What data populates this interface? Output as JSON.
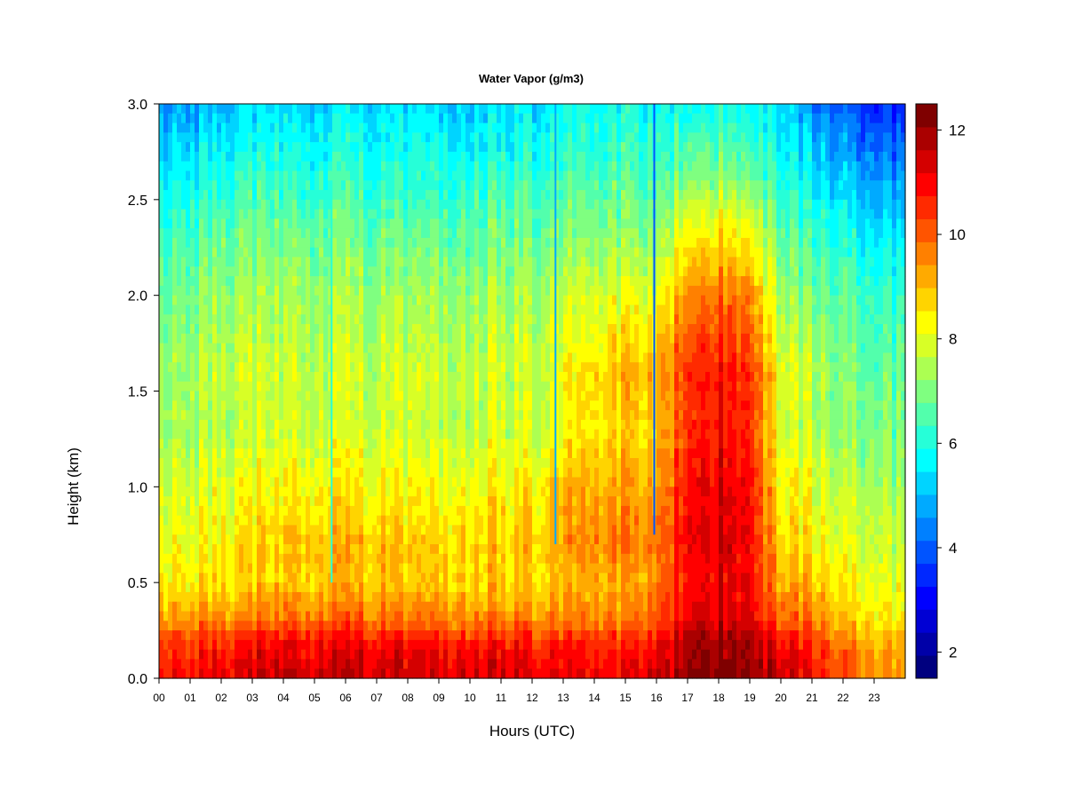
{
  "chart_data": {
    "type": "heatmap",
    "title": "Water Vapor (g/m3)",
    "xlabel": "Hours (UTC)",
    "ylabel": "Height (km)",
    "xlim": [
      0,
      24
    ],
    "ylim": [
      0.0,
      3.0
    ],
    "x_ticks": [
      "00",
      "01",
      "02",
      "03",
      "04",
      "05",
      "06",
      "07",
      "08",
      "09",
      "10",
      "11",
      "12",
      "13",
      "14",
      "15",
      "16",
      "17",
      "18",
      "19",
      "20",
      "21",
      "22",
      "23"
    ],
    "y_ticks": [
      "0.0",
      "0.5",
      "1.0",
      "1.5",
      "2.0",
      "2.5",
      "3.0"
    ],
    "colorbar": {
      "range": [
        1.5,
        12.5
      ],
      "tick_labels": [
        "2",
        "4",
        "6",
        "8",
        "10",
        "12"
      ],
      "colors": [
        "#00007f",
        "#0000a8",
        "#0000d4",
        "#0000ff",
        "#0028ff",
        "#0054ff",
        "#0080ff",
        "#00aaff",
        "#00d4ff",
        "#00ffff",
        "#26ffd8",
        "#52ffac",
        "#7fff80",
        "#acff52",
        "#d8ff26",
        "#ffff00",
        "#ffd400",
        "#ffaa00",
        "#ff8000",
        "#ff5400",
        "#ff2a00",
        "#ff0000",
        "#d40000",
        "#aa0000",
        "#7f0000"
      ]
    },
    "x": [
      0,
      2,
      4,
      6,
      8,
      10,
      12,
      13,
      14,
      15,
      16,
      17,
      18,
      19,
      20,
      21,
      22,
      23,
      24
    ],
    "heights": [
      0.0,
      0.1,
      0.2,
      0.3,
      0.5,
      0.7,
      1.0,
      1.3,
      1.6,
      2.0,
      2.3,
      2.6,
      2.9,
      3.0
    ],
    "profiles": [
      [
        10.8,
        10.6,
        10.2,
        9.5,
        8.4,
        8.2,
        7.8,
        7.3,
        7.2,
        6.8,
        6.3,
        5.6,
        4.9,
        4.7
      ],
      [
        11.2,
        11.0,
        10.5,
        9.6,
        8.6,
        8.4,
        8.0,
        7.6,
        7.7,
        7.3,
        6.8,
        6.1,
        5.3,
        5.0
      ],
      [
        11.5,
        11.3,
        10.9,
        9.9,
        8.9,
        8.9,
        8.3,
        7.8,
        7.7,
        7.4,
        6.9,
        6.3,
        5.6,
        5.3
      ],
      [
        11.5,
        11.3,
        10.9,
        9.9,
        9.0,
        9.0,
        8.4,
        7.8,
        7.7,
        7.3,
        6.8,
        6.2,
        5.6,
        5.3
      ],
      [
        11.4,
        11.3,
        10.8,
        9.8,
        8.9,
        8.9,
        8.3,
        7.8,
        7.8,
        7.4,
        6.8,
        6.2,
        5.6,
        5.3
      ],
      [
        11.4,
        11.2,
        10.7,
        9.7,
        8.8,
        8.8,
        8.3,
        7.7,
        7.7,
        7.3,
        6.8,
        6.2,
        5.5,
        5.2
      ],
      [
        11.2,
        11.0,
        10.6,
        9.6,
        8.8,
        8.9,
        8.5,
        7.8,
        7.8,
        7.4,
        6.9,
        6.3,
        5.7,
        5.5
      ],
      [
        11.1,
        10.9,
        10.5,
        9.6,
        8.9,
        9.2,
        8.9,
        8.1,
        8.2,
        7.6,
        7.0,
        6.4,
        5.8,
        5.7
      ],
      [
        11.0,
        10.8,
        10.4,
        9.6,
        9.0,
        9.5,
        9.1,
        8.5,
        8.6,
        7.8,
        7.1,
        6.5,
        5.9,
        5.8
      ],
      [
        11.0,
        10.8,
        10.4,
        9.6,
        9.1,
        9.7,
        9.2,
        8.7,
        9.1,
        8.0,
        7.2,
        6.6,
        6.0,
        5.9
      ],
      [
        11.4,
        11.2,
        10.8,
        10.0,
        9.5,
        9.6,
        9.2,
        8.7,
        9.0,
        7.9,
        7.1,
        6.4,
        5.8,
        5.7
      ],
      [
        12.2,
        12.0,
        11.8,
        11.2,
        11.0,
        11.2,
        11.0,
        10.6,
        10.6,
        9.6,
        8.4,
        7.2,
        6.2,
        6.0
      ],
      [
        12.4,
        12.2,
        12.0,
        11.5,
        11.2,
        11.4,
        11.3,
        10.9,
        10.8,
        9.9,
        8.6,
        7.3,
        6.2,
        6.0
      ],
      [
        12.3,
        12.1,
        11.9,
        11.4,
        11.1,
        11.2,
        11.1,
        10.7,
        10.7,
        9.7,
        8.5,
        7.1,
        6.1,
        5.9
      ],
      [
        11.4,
        11.2,
        10.7,
        9.9,
        9.1,
        8.6,
        8.2,
        7.8,
        7.9,
        7.2,
        6.6,
        6.0,
        5.4,
        5.2
      ],
      [
        11.0,
        10.8,
        10.4,
        9.8,
        9.0,
        8.5,
        8.1,
        7.6,
        7.6,
        7.0,
        6.4,
        5.6,
        4.8,
        4.4
      ],
      [
        10.2,
        10.0,
        9.6,
        9.0,
        8.4,
        8.0,
        7.6,
        7.2,
        7.1,
        6.6,
        6.0,
        5.2,
        4.3,
        3.9
      ],
      [
        9.6,
        9.4,
        9.1,
        8.6,
        8.1,
        7.8,
        7.4,
        7.0,
        6.8,
        6.3,
        5.6,
        4.7,
        3.8,
        3.5
      ],
      [
        9.4,
        9.2,
        8.9,
        8.4,
        8.0,
        7.7,
        7.3,
        6.9,
        6.7,
        6.2,
        5.5,
        4.6,
        3.7,
        3.4
      ]
    ]
  }
}
